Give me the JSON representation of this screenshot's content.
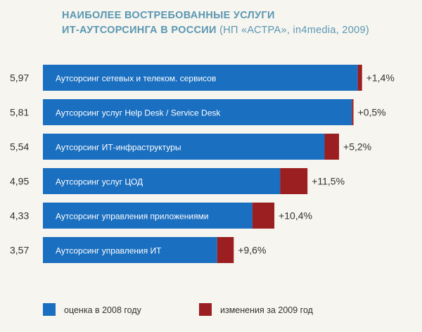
{
  "chart_data": {
    "type": "bar",
    "orientation": "horizontal",
    "stacked": true,
    "title_line1": "НАИБОЛЕЕ ВОСТРЕБОВАННЫЕ УСЛУГИ",
    "title_line2_main": "ИТ-АУТСОРСИНГА В РОССИИ",
    "title_line2_source": "(НП «АСТРА», in4media, 2009)",
    "categories": [
      "Аутсорсинг сетевых и телеком. сервисов",
      "Аутсорсинг услуг Help Desk / Service Desk",
      "Аутсорсинг ИТ-инфраструктуры",
      "Аутсорсинг услуг ЦОД",
      "Аутсорсинг управления приложениями",
      "Аутсорсинг управления ИТ"
    ],
    "score_labels": [
      "5,97",
      "5,81",
      "5,54",
      "4,95",
      "4,33",
      "3,57"
    ],
    "change_labels": [
      "+1,4%",
      "+0,5%",
      "+5,2%",
      "+11,5%",
      "+10,4%",
      "+9,6%"
    ],
    "series": [
      {
        "name": "оценка в 2008 году",
        "values": [
          5.89,
          5.78,
          5.27,
          4.44,
          3.92,
          3.26
        ]
      },
      {
        "name": "изменения за 2009 год",
        "values": [
          0.08,
          0.03,
          0.27,
          0.51,
          0.41,
          0.31
        ]
      }
    ],
    "legend_position": "bottom",
    "grid": false,
    "colors": {
      "base": "#1a6fc0",
      "change": "#9b1e20",
      "title": "#5b97b3",
      "text": "#333333",
      "bar_text": "#ffffff"
    }
  }
}
